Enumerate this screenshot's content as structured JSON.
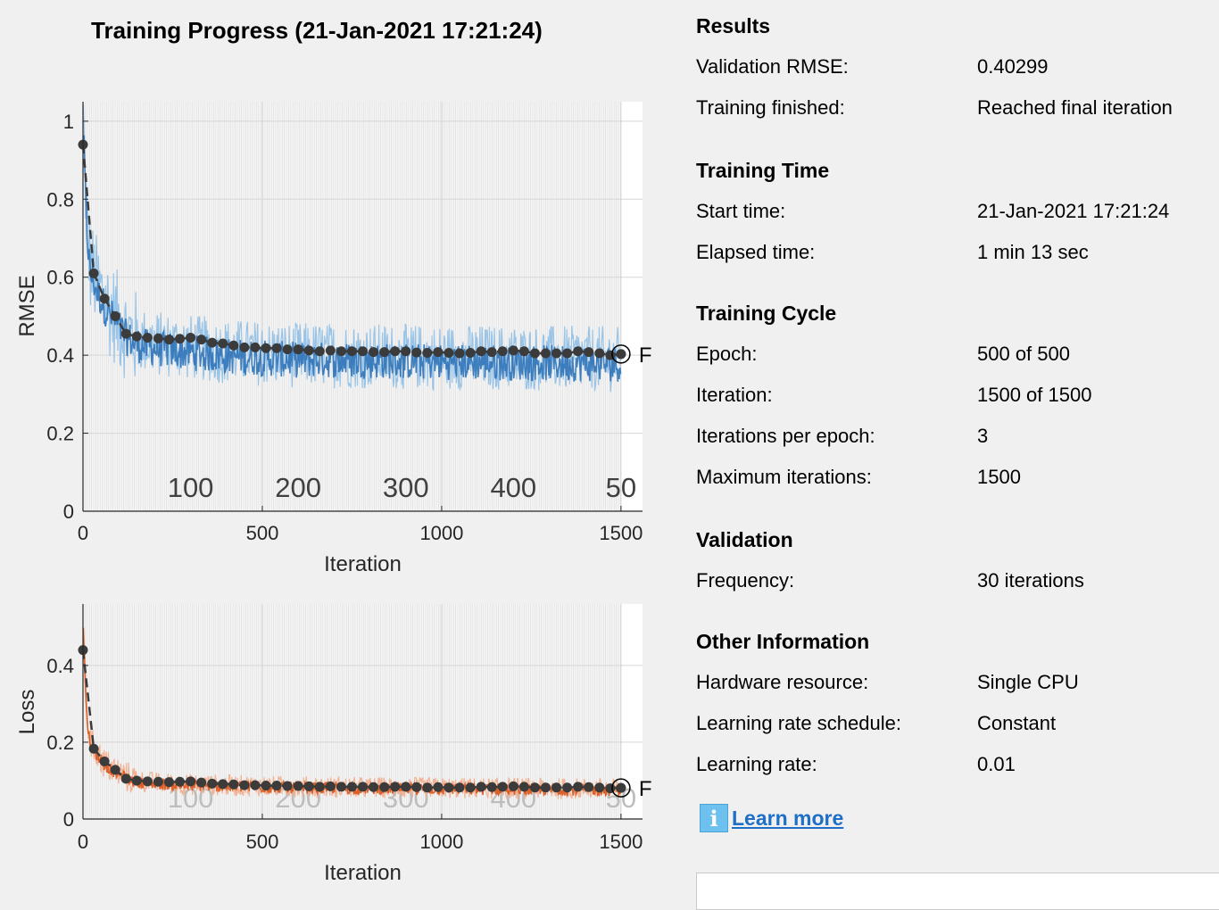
{
  "title": "Training Progress (21-Jan-2021 17:21:24)",
  "chart_data": [
    {
      "type": "line",
      "ylabel": "RMSE",
      "xlabel": "Iteration",
      "xlim": [
        0,
        1560
      ],
      "ylim": [
        0,
        1.05
      ],
      "x_ticks": [
        0,
        500,
        1000,
        1500
      ],
      "y_ticks": [
        0,
        0.2,
        0.4,
        0.6,
        0.8,
        1
      ],
      "y_tick_labels": [
        "0",
        "0.2",
        "0.4",
        "0.6",
        "0.8",
        "1"
      ],
      "epoch_labels": [
        "100",
        "200",
        "300",
        "400",
        "50"
      ],
      "final_marker_label": "F",
      "grid": true,
      "colors": {
        "raw": "#8fbfe6",
        "smoothed": "#2f73b8",
        "validation": "#3b3b3b"
      },
      "series": [
        {
          "x": [
            0,
            10,
            20,
            40,
            60,
            90,
            120,
            150,
            200,
            300,
            400,
            500,
            600,
            700,
            800,
            900,
            1000,
            1100,
            1200,
            1300,
            1400,
            1500
          ],
          "values": [
            1.03,
            0.75,
            0.63,
            0.58,
            0.54,
            0.5,
            0.46,
            0.44,
            0.43,
            0.42,
            0.41,
            0.405,
            0.4,
            0.4,
            0.398,
            0.396,
            0.395,
            0.394,
            0.393,
            0.392,
            0.39,
            0.39
          ]
        },
        {
          "x": [
            0,
            30,
            60,
            90,
            120,
            150,
            180,
            210,
            240,
            270,
            300,
            330,
            360,
            390,
            420,
            450,
            480,
            510,
            540,
            570,
            600,
            630,
            660,
            690,
            720,
            750,
            780,
            810,
            840,
            870,
            900,
            930,
            960,
            990,
            1020,
            1050,
            1080,
            1110,
            1140,
            1170,
            1200,
            1230,
            1260,
            1290,
            1320,
            1350,
            1380,
            1410,
            1440,
            1470,
            1500
          ],
          "values": [
            0.94,
            0.61,
            0.545,
            0.5,
            0.455,
            0.448,
            0.445,
            0.443,
            0.44,
            0.442,
            0.445,
            0.44,
            0.432,
            0.43,
            0.425,
            0.42,
            0.42,
            0.418,
            0.418,
            0.415,
            0.415,
            0.412,
            0.41,
            0.412,
            0.41,
            0.41,
            0.41,
            0.408,
            0.408,
            0.41,
            0.41,
            0.407,
            0.406,
            0.408,
            0.406,
            0.405,
            0.406,
            0.41,
            0.408,
            0.41,
            0.412,
            0.41,
            0.405,
            0.405,
            0.405,
            0.405,
            0.41,
            0.408,
            0.405,
            0.4,
            0.403
          ]
        }
      ]
    },
    {
      "type": "line",
      "ylabel": "Loss",
      "xlabel": "Iteration",
      "xlim": [
        0,
        1560
      ],
      "ylim": [
        0,
        0.56
      ],
      "x_ticks": [
        0,
        500,
        1000,
        1500
      ],
      "y_ticks": [
        0,
        0.2,
        0.4
      ],
      "y_tick_labels": [
        "0",
        "0.2",
        "0.4"
      ],
      "epoch_labels": [
        "100",
        "200",
        "300",
        "400",
        "50"
      ],
      "final_marker_label": "F",
      "grid": true,
      "colors": {
        "raw": "#f1ad8c",
        "smoothed": "#d9541a",
        "validation": "#3b3b3b"
      },
      "series": [
        {
          "x": [
            0,
            10,
            20,
            40,
            60,
            90,
            120,
            150,
            200,
            300,
            400,
            500,
            600,
            700,
            800,
            900,
            1000,
            1100,
            1200,
            1300,
            1400,
            1500
          ],
          "values": [
            0.53,
            0.28,
            0.2,
            0.17,
            0.145,
            0.125,
            0.11,
            0.1,
            0.095,
            0.09,
            0.088,
            0.086,
            0.084,
            0.083,
            0.082,
            0.081,
            0.081,
            0.08,
            0.08,
            0.079,
            0.079,
            0.078
          ]
        },
        {
          "x": [
            0,
            30,
            60,
            90,
            120,
            150,
            180,
            210,
            240,
            270,
            300,
            330,
            360,
            390,
            420,
            450,
            480,
            510,
            540,
            570,
            600,
            630,
            660,
            690,
            720,
            750,
            780,
            810,
            840,
            870,
            900,
            930,
            960,
            990,
            1020,
            1050,
            1080,
            1110,
            1140,
            1170,
            1200,
            1230,
            1260,
            1290,
            1320,
            1350,
            1380,
            1410,
            1440,
            1470,
            1500
          ],
          "values": [
            0.44,
            0.183,
            0.15,
            0.128,
            0.105,
            0.1,
            0.098,
            0.097,
            0.096,
            0.097,
            0.098,
            0.095,
            0.092,
            0.091,
            0.09,
            0.088,
            0.088,
            0.087,
            0.087,
            0.086,
            0.086,
            0.085,
            0.084,
            0.085,
            0.084,
            0.084,
            0.084,
            0.083,
            0.083,
            0.084,
            0.084,
            0.083,
            0.082,
            0.083,
            0.082,
            0.082,
            0.082,
            0.084,
            0.083,
            0.084,
            0.085,
            0.084,
            0.082,
            0.082,
            0.082,
            0.082,
            0.084,
            0.083,
            0.082,
            0.08,
            0.081
          ]
        }
      ]
    }
  ],
  "results": {
    "title": "Results",
    "validation_rmse_label": "Validation RMSE:",
    "validation_rmse_value": "0.40299",
    "training_finished_label": "Training finished:",
    "training_finished_value": "Reached final iteration"
  },
  "training_time": {
    "title": "Training Time",
    "start_label": "Start time:",
    "start_value": "21-Jan-2021 17:21:24",
    "elapsed_label": "Elapsed time:",
    "elapsed_value": "1 min 13 sec"
  },
  "training_cycle": {
    "title": "Training Cycle",
    "epoch_label": "Epoch:",
    "epoch_value": "500 of 500",
    "iteration_label": "Iteration:",
    "iteration_value": "1500 of 1500",
    "ipe_label": "Iterations per epoch:",
    "ipe_value": "3",
    "max_iter_label": "Maximum iterations:",
    "max_iter_value": "1500"
  },
  "validation": {
    "title": "Validation",
    "frequency_label": "Frequency:",
    "frequency_value": "30 iterations"
  },
  "other_info": {
    "title": "Other Information",
    "hardware_label": "Hardware resource:",
    "hardware_value": "Single CPU",
    "lr_schedule_label": "Learning rate schedule:",
    "lr_schedule_value": "Constant",
    "lr_label": "Learning rate:",
    "lr_value": "0.01"
  },
  "learn_more": {
    "icon": "info-icon",
    "icon_glyph": "i",
    "label": "Learn more"
  }
}
